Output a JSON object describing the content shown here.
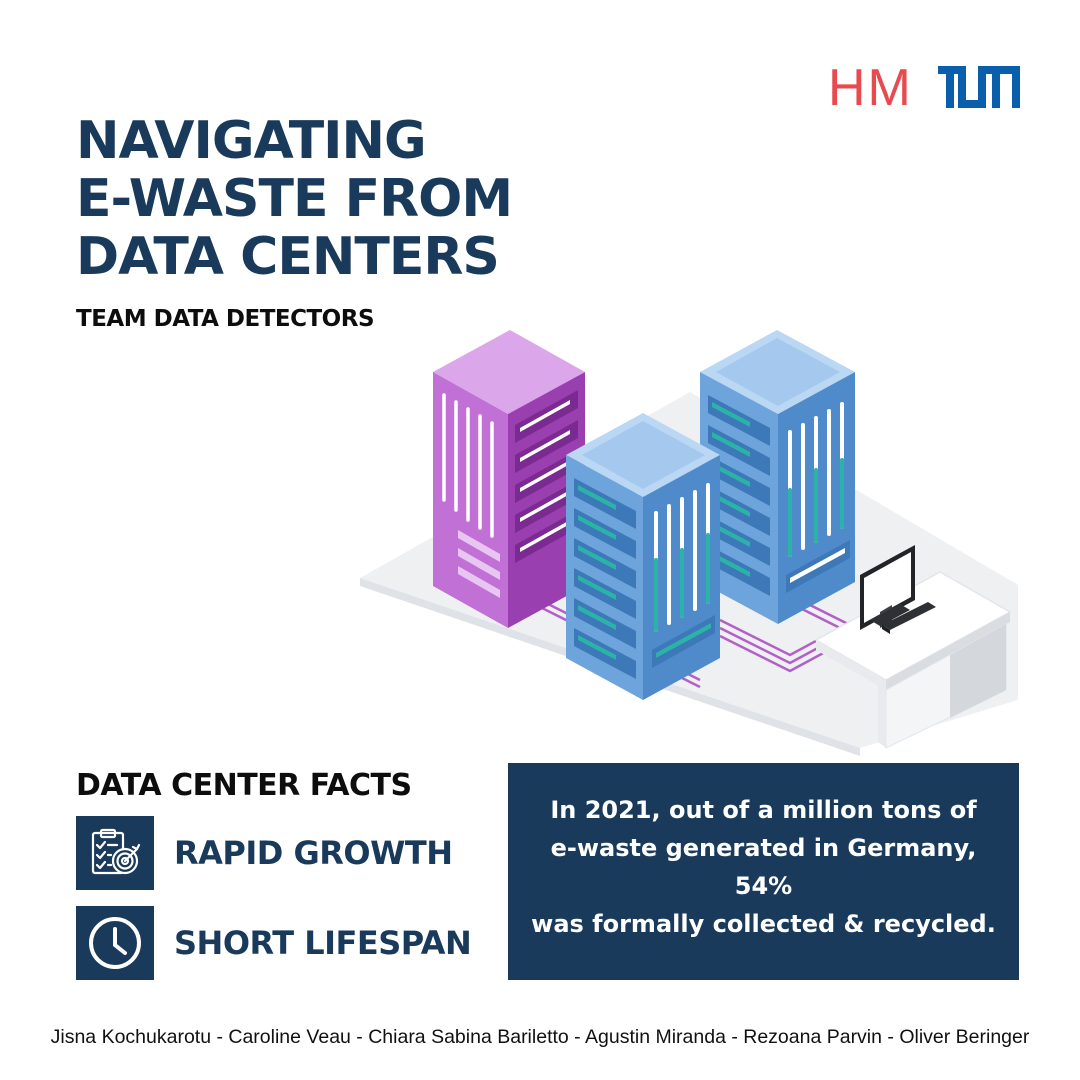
{
  "logos": {
    "hm": "HM",
    "tum": "TUM",
    "hm_color": "#e84b4f",
    "tum_color": "#0a5fad"
  },
  "title_lines": [
    "NAVIGATING",
    "E-WASTE FROM",
    "DATA CENTERS"
  ],
  "subtitle": "TEAM DATA DETECTORS",
  "illustration": {
    "description_icon": "server-room-icon"
  },
  "facts": {
    "heading": "DATA CENTER FACTS",
    "items": [
      {
        "label": "RAPID GROWTH",
        "icon": "checklist-target-icon"
      },
      {
        "label": "SHORT LIFESPAN",
        "icon": "clock-icon"
      }
    ]
  },
  "stat": {
    "line1": "In 2021, out of a million tons of",
    "line2": "e-waste generated in Germany,",
    "value": "54%",
    "line3": "was formally collected & recycled."
  },
  "credits": "Jisna Kochukarotu - Caroline Veau - Chiara Sabina Bariletto - Agustin Miranda - Rezoana Parvin - Oliver Beringer",
  "colors": {
    "navy": "#1a3a5c",
    "purple": "#b35fc8",
    "blue": "#6ea4dc",
    "teal": "#2bb3a8"
  }
}
